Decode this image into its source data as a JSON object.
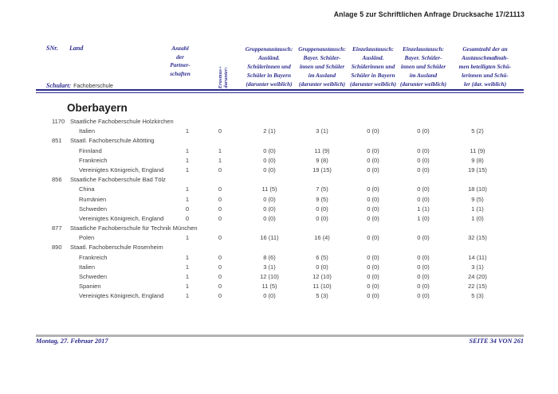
{
  "page_header": {
    "title": "Anlage 5 zur Schriftlichen Anfrage Drucksache 17/21113"
  },
  "table_header": {
    "snr": "SNr.",
    "land": "Land",
    "schulart_label": "Schulart:",
    "schulart_value": "Fachoberschule",
    "partnerships": "Anzahl\nder\nPartner-\nschaften",
    "erasmus_line1": "darunter:",
    "erasmus_line2": "Erasmus+",
    "columns": [
      "Gruppenaustausch:\nAusländ.\nSchülerinnen und\nSchüler in Bayern\n(darunter weiblich)",
      "Gruppenaustausch:\nBayer. Schüler-\ninnen und Schüler\nim Ausland\n(darunter weiblich)",
      "Einzelaustausch:\nAusländ.\nSchülerinnen und\nSchüler in Bayern\n(darunter weiblich)",
      "Einzelaustausch:\nBayer. Schüler-\ninnen und Schüler\nim Ausland\n(darunter weiblich)",
      "Gesamtzahl der an\nAustauschmaßnah-\nmen beteiligten Schü-\nlerinnen und Schü-\nler (dar. weiblich)"
    ]
  },
  "region_title": "Oberbayern",
  "rows": [
    {
      "type": "school",
      "snr": "1170",
      "name": "Staatliche Fachoberschule Holzkirchen"
    },
    {
      "type": "country",
      "name": "Italien",
      "partnerships": "1",
      "erasmus": "0",
      "values": [
        "2 (1)",
        "3 (1)",
        "0 (0)",
        "0 (0)",
        "5 (2)"
      ]
    },
    {
      "type": "school",
      "snr": "851",
      "name": "Staatl. Fachoberschule Altötting"
    },
    {
      "type": "country",
      "name": "Finnland",
      "partnerships": "1",
      "erasmus": "1",
      "values": [
        "0 (0)",
        "11 (9)",
        "0 (0)",
        "0 (0)",
        "11 (9)"
      ]
    },
    {
      "type": "country",
      "name": "Frankreich",
      "partnerships": "1",
      "erasmus": "1",
      "values": [
        "0 (0)",
        "9 (8)",
        "0 (0)",
        "0 (0)",
        "9 (8)"
      ]
    },
    {
      "type": "country",
      "name": "Vereinigtes Königreich, England",
      "partnerships": "1",
      "erasmus": "0",
      "values": [
        "0 (0)",
        "19 (15)",
        "0 (0)",
        "0 (0)",
        "19 (15)"
      ]
    },
    {
      "type": "school",
      "snr": "856",
      "name": "Staatliche Fachoberschule Bad Tölz"
    },
    {
      "type": "country",
      "name": "China",
      "partnerships": "1",
      "erasmus": "0",
      "values": [
        "11 (5)",
        "7 (5)",
        "0 (0)",
        "0 (0)",
        "18 (10)"
      ]
    },
    {
      "type": "country",
      "name": "Rumänien",
      "partnerships": "1",
      "erasmus": "0",
      "values": [
        "0 (0)",
        "9 (5)",
        "0 (0)",
        "0 (0)",
        "9 (5)"
      ]
    },
    {
      "type": "country",
      "name": "Schweden",
      "partnerships": "0",
      "erasmus": "0",
      "values": [
        "0 (0)",
        "0 (0)",
        "0 (0)",
        "1 (1)",
        "1 (1)"
      ]
    },
    {
      "type": "country",
      "name": "Vereinigtes Königreich, England",
      "partnerships": "0",
      "erasmus": "0",
      "values": [
        "0 (0)",
        "0 (0)",
        "0 (0)",
        "1 (0)",
        "1 (0)"
      ]
    },
    {
      "type": "school",
      "snr": "877",
      "name": "Staatliche Fachoberschule für Technik München"
    },
    {
      "type": "country",
      "name": "Polen",
      "partnerships": "1",
      "erasmus": "0",
      "values": [
        "16 (11)",
        "16 (4)",
        "0 (0)",
        "0 (0)",
        "32 (15)"
      ]
    },
    {
      "type": "school",
      "snr": "890",
      "name": "Staatl. Fachoberschule Rosenheim"
    },
    {
      "type": "country",
      "name": "Frankreich",
      "partnerships": "1",
      "erasmus": "0",
      "values": [
        "8 (6)",
        "6 (5)",
        "0 (0)",
        "0 (0)",
        "14 (11)"
      ]
    },
    {
      "type": "country",
      "name": "Italien",
      "partnerships": "1",
      "erasmus": "0",
      "values": [
        "3 (1)",
        "0 (0)",
        "0 (0)",
        "0 (0)",
        "3 (1)"
      ]
    },
    {
      "type": "country",
      "name": "Schweden",
      "partnerships": "1",
      "erasmus": "0",
      "values": [
        "12 (10)",
        "12 (10)",
        "0 (0)",
        "0 (0)",
        "24 (20)"
      ]
    },
    {
      "type": "country",
      "name": "Spanien",
      "partnerships": "1",
      "erasmus": "0",
      "values": [
        "11 (5)",
        "11 (10)",
        "0 (0)",
        "0 (0)",
        "22 (15)"
      ]
    },
    {
      "type": "country",
      "name": "Vereinigtes Königreich, England",
      "partnerships": "1",
      "erasmus": "0",
      "values": [
        "0 (0)",
        "5 (3)",
        "0 (0)",
        "0 (0)",
        "5 (3)"
      ]
    }
  ],
  "footer": {
    "date": "Montag, 27. Februar 2017",
    "page": "SEITE 34 VON 261"
  },
  "colors": {
    "navy": "#2b2b8e",
    "body_text": "#3d3d3d",
    "footer_rule": "#8e8e8e"
  }
}
